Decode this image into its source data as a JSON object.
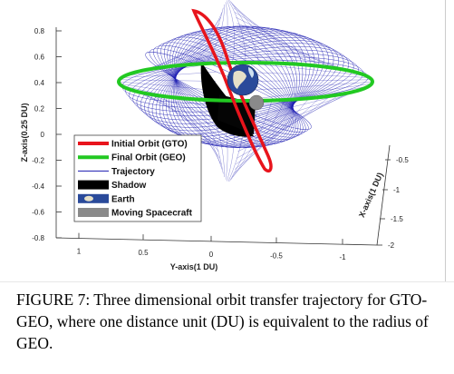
{
  "chart_data": {
    "type": "line",
    "view": "3d",
    "z_axis": {
      "label": "Z-axis(0.25 DU)",
      "ticks": [
        "0.8",
        "0.6",
        "0.4",
        "0.2",
        "0",
        "-0.2",
        "-0.4",
        "-0.6",
        "-0.8"
      ]
    },
    "y_axis": {
      "label": "Y-axis(1 DU)",
      "ticks": [
        "1",
        "0.5",
        "0",
        "-0.5",
        "-1"
      ]
    },
    "x_axis": {
      "label": "X-axis(1 DU)",
      "ticks": [
        "-0.5",
        "-1",
        "-1.5",
        "-2"
      ]
    },
    "legend": {
      "placement": "bottom-left",
      "entries": [
        {
          "label": "Initial Orbit (GTO)",
          "symbol": "thick-line",
          "color": "#e8141c"
        },
        {
          "label": "Final Orbit (GEO)",
          "symbol": "thick-line",
          "color": "#22c922"
        },
        {
          "label": "Trajectory",
          "symbol": "thin-line",
          "color": "#1a1ab0"
        },
        {
          "label": "Shadow",
          "symbol": "patch",
          "color": "#000000"
        },
        {
          "label": "Earth",
          "symbol": "image-patch",
          "color": "#2a4a9a"
        },
        {
          "label": "Moving Spacecraft",
          "symbol": "patch",
          "color": "#8a8a8a"
        }
      ]
    },
    "series": [
      {
        "name": "Initial Orbit (GTO)",
        "color": "#e8141c"
      },
      {
        "name": "Final Orbit (GEO)",
        "color": "#22c922"
      },
      {
        "name": "Trajectory",
        "color": "#1a1ab0"
      }
    ]
  },
  "caption": "FIGURE 7: Three dimensional orbit transfer trajectory for GTO-GEO, where one distance unit (DU) is equivalent to the radius of GEO."
}
